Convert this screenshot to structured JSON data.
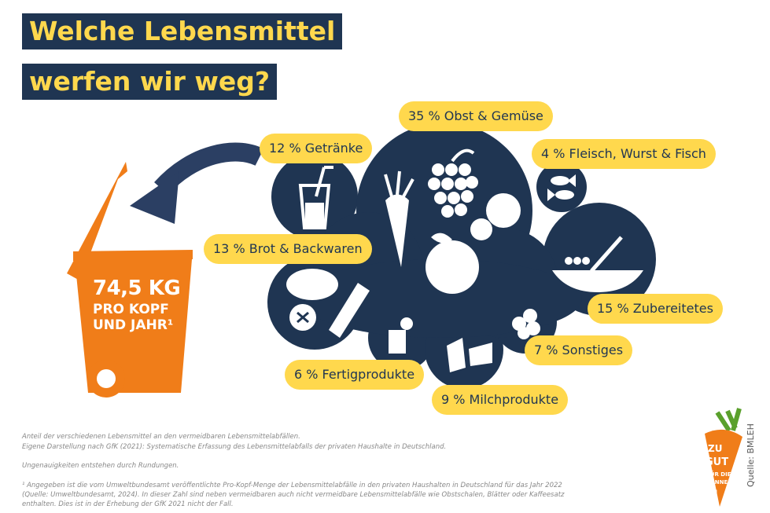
{
  "title": {
    "line1": "Welche Lebensmittel",
    "line2": "werfen wir weg?"
  },
  "bin": {
    "amount": "74,5 KG",
    "line2": "PRO KOPF",
    "line3": "UND JAHR¹"
  },
  "categories": [
    {
      "label": "35 % Obst & Gemüse",
      "icon": "fruit-vegetable-icon"
    },
    {
      "label": "12 % Getränke",
      "icon": "drink-icon"
    },
    {
      "label": "4 % Fleisch, Wurst & Fisch",
      "icon": "fish-icon"
    },
    {
      "label": "13 % Brot & Backwaren",
      "icon": "bread-icon"
    },
    {
      "label": "15 % Zubereitetes",
      "icon": "meal-icon"
    },
    {
      "label": "7 % Sonstiges",
      "icon": "misc-icon"
    },
    {
      "label": "6 % Fertigprodukte",
      "icon": "can-icon"
    },
    {
      "label": "9 % Milchprodukte",
      "icon": "dairy-icon"
    }
  ],
  "footnotes": {
    "line1": "Anteil der verschiedenen Lebensmittel an den vermeidbaren Lebensmittelabfällen.",
    "line2": "Eigene Darstellung nach GfK (2021): Systematische Erfassung des Lebensmittelabfalls der privaten Haushalte in Deutschland.",
    "line3": "Ungenauigkeiten entstehen durch Rundungen.",
    "line4": "¹ Angegeben ist die vom Umweltbundesamt veröffentlichte Pro-Kopf-Menge der Lebensmittelabfälle in den privaten Haushalten in Deutschland für das Jahr 2022",
    "line5": "(Quelle: Umweltbundesamt, 2024). In dieser Zahl sind neben vermeidbaren auch nicht vermeidbare Lebensmittelabfälle wie Obstschalen, Blätter oder Kaffeesatz",
    "line6": "enthalten. Dies ist in der Erhebung der GfK 2021 nicht der Fall."
  },
  "logo": {
    "text": "ZU GUT FÜR DIE TONNE!"
  },
  "source": "Quelle: BMLEH",
  "colors": {
    "navy": "#1f3552",
    "yellow": "#ffd84d",
    "orange": "#f07d19",
    "white": "#ffffff",
    "green": "#5aa02c"
  }
}
